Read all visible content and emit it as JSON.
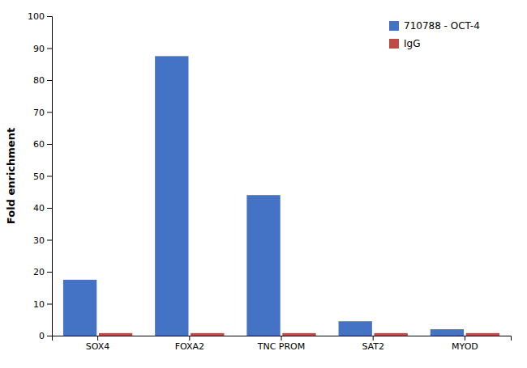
{
  "chart_data": {
    "type": "bar",
    "categories": [
      "SOX4",
      "FOXA2",
      "TNC PROM",
      "SAT2",
      "MYOD"
    ],
    "series": [
      {
        "name": "710788 - OCT-4",
        "color": "#4472C4",
        "values": [
          17.5,
          87.5,
          44.0,
          4.5,
          2.0
        ]
      },
      {
        "name": "IgG",
        "color": "#BE4B48",
        "values": [
          0.8,
          0.8,
          0.8,
          0.8,
          0.8
        ]
      }
    ],
    "ylabel": "Fold enrichment",
    "ylim": [
      0,
      100
    ],
    "yticks": [
      0,
      10,
      20,
      30,
      40,
      50,
      60,
      70,
      80,
      90,
      100
    ],
    "grid": false,
    "legend": "upper right"
  }
}
